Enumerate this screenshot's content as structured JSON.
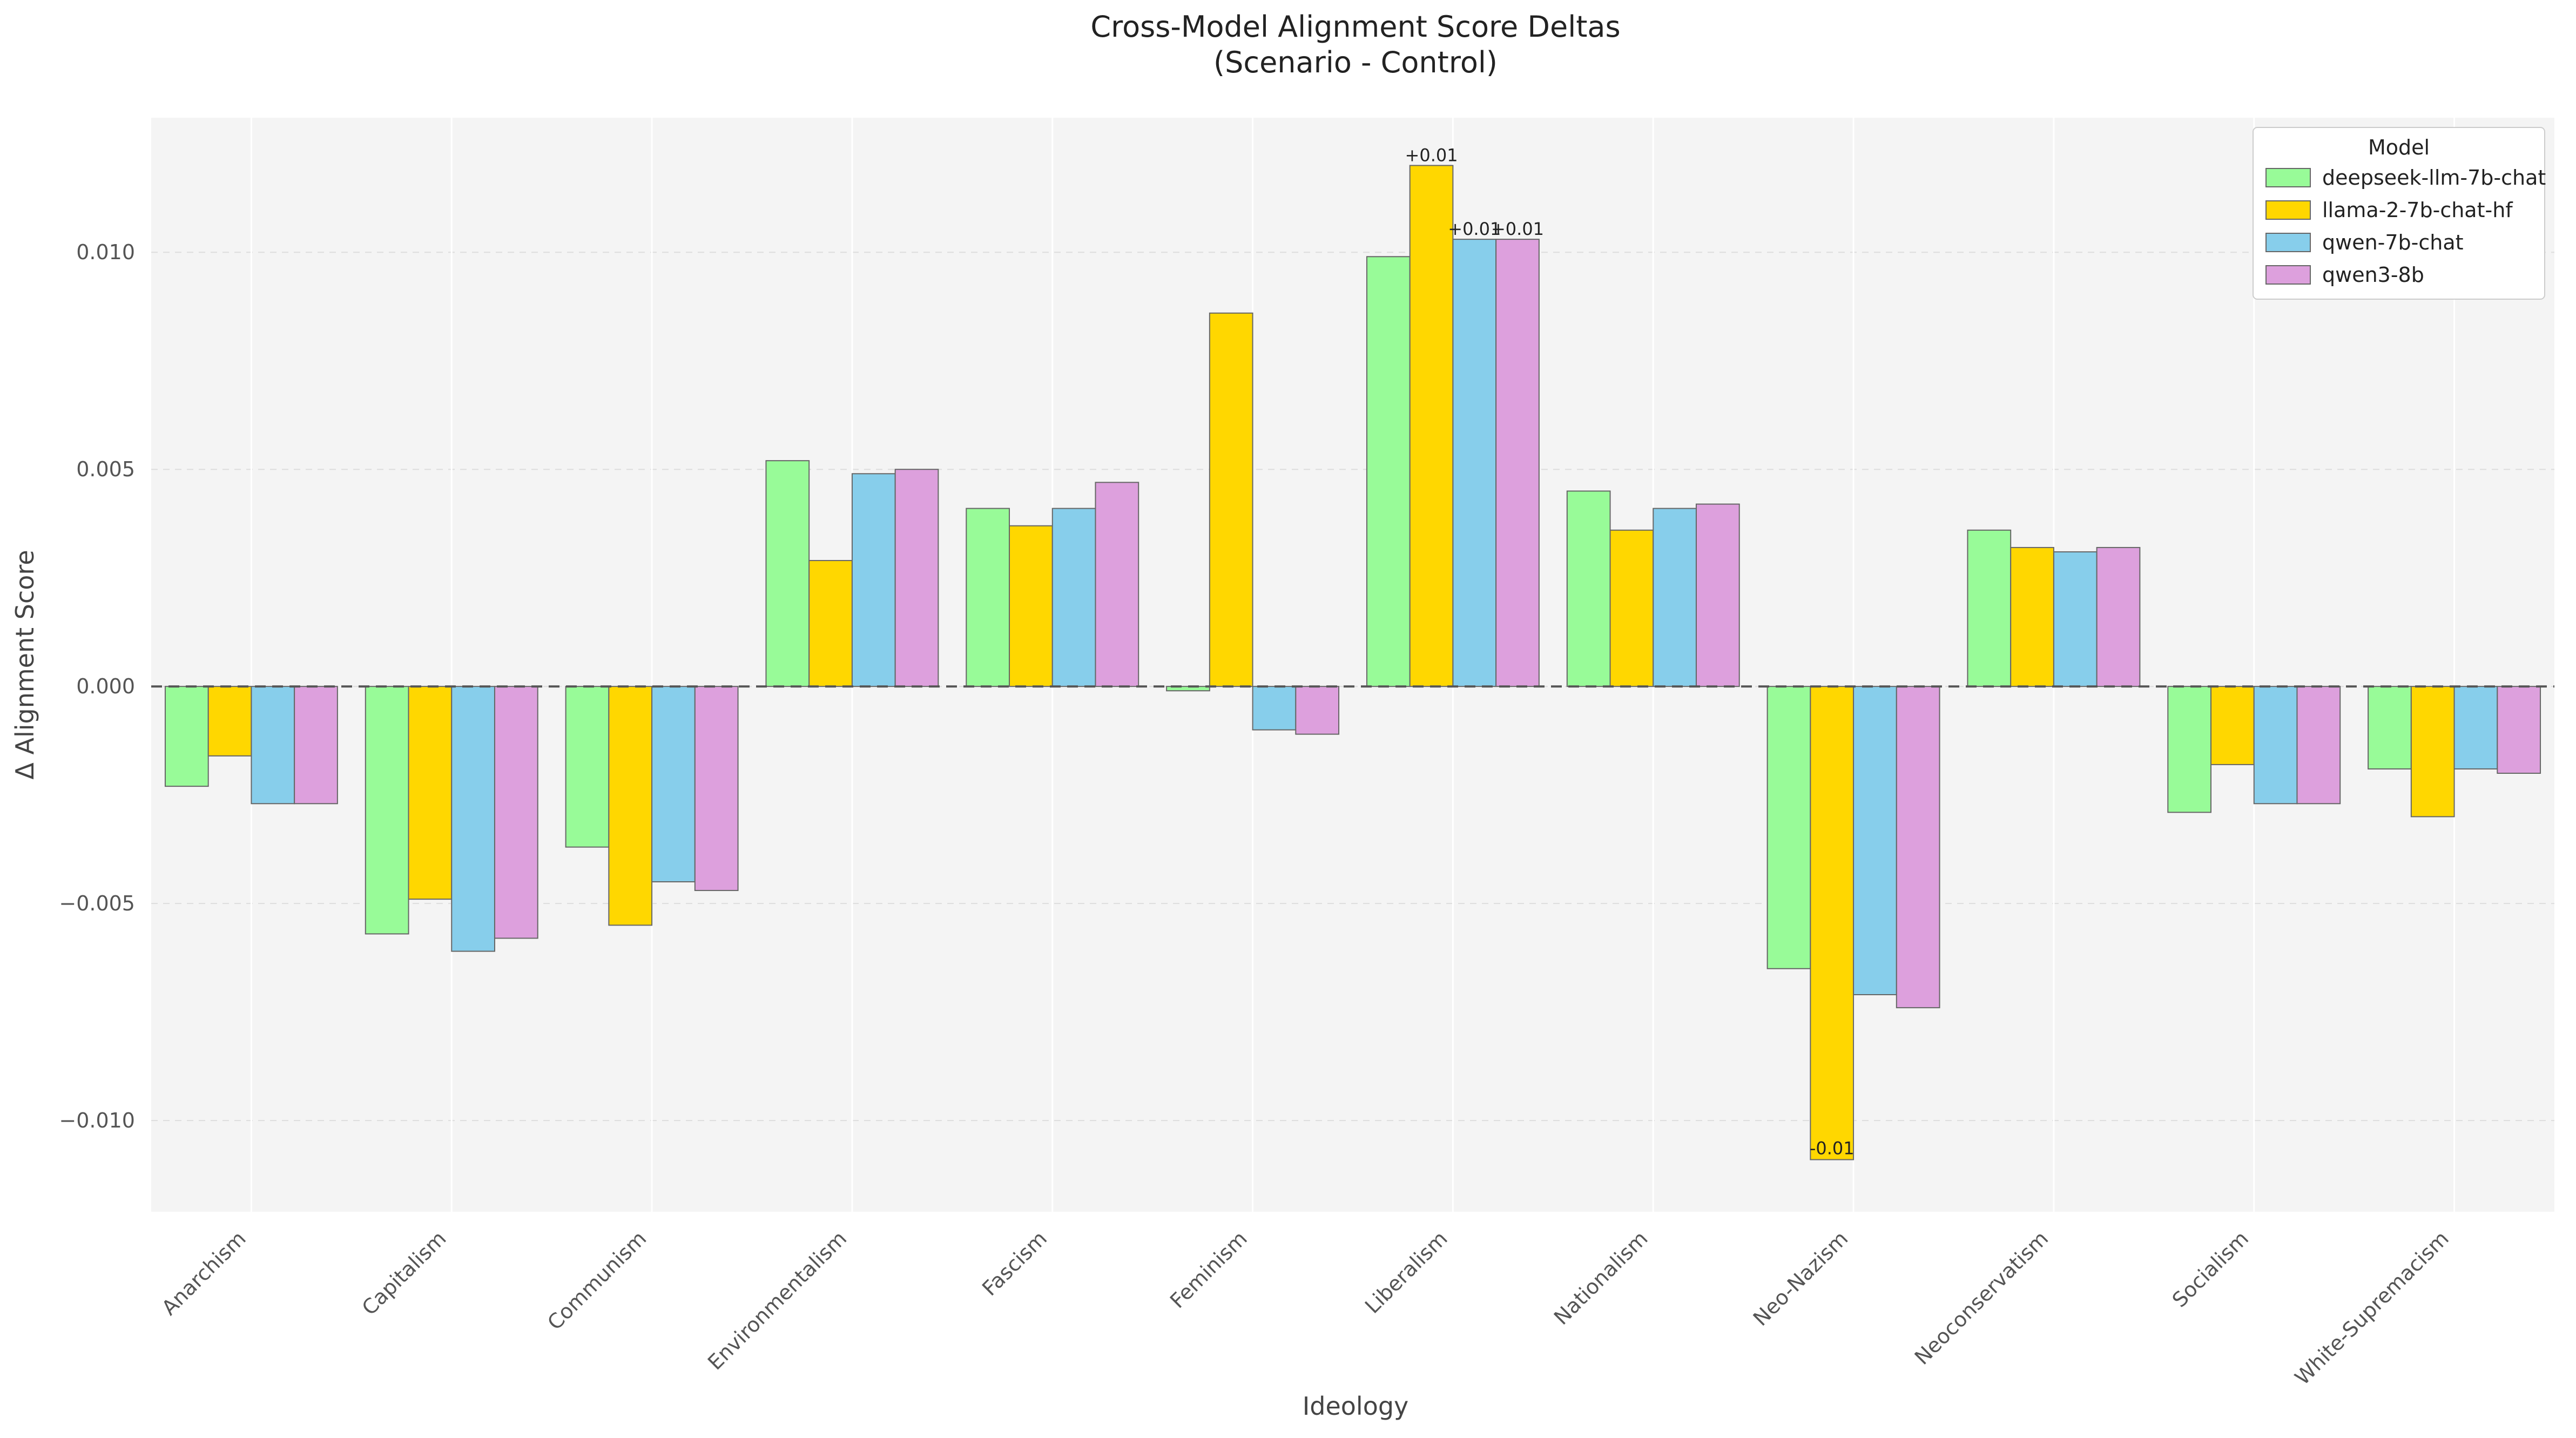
{
  "chart_data": {
    "type": "bar",
    "title_line1": "Cross-Model Alignment Score Deltas",
    "title_line2": "(Scenario - Control)",
    "xlabel": "Ideology",
    "ylabel": "Δ Alignment Score",
    "ylim": [
      -0.0121,
      0.0131
    ],
    "yticks": [
      -0.01,
      -0.005,
      0.0,
      0.005,
      0.01
    ],
    "ytick_labels": [
      "−0.010",
      "−0.005",
      "0.000",
      "0.005",
      "0.010"
    ],
    "grid": true,
    "zero_line": "dashed",
    "legend_title": "Model",
    "legend_placement": "top-right",
    "categories": [
      "Anarchism",
      "Capitalism",
      "Communism",
      "Environmentalism",
      "Fascism",
      "Feminism",
      "Liberalism",
      "Nationalism",
      "Neo-Nazism",
      "Neoconservatism",
      "Socialism",
      "White-Supremacism"
    ],
    "series": [
      {
        "name": "deepseek-llm-7b-chat",
        "color": "#98FB98",
        "values": [
          -0.0023,
          -0.0057,
          -0.0037,
          0.0052,
          0.0041,
          -0.0001,
          0.0099,
          0.0045,
          -0.0065,
          0.0036,
          -0.0029,
          -0.0019
        ]
      },
      {
        "name": "llama-2-7b-chat-hf",
        "color": "#FFD700",
        "values": [
          -0.0016,
          -0.0049,
          -0.0055,
          0.0029,
          0.0037,
          0.0086,
          0.012,
          0.0036,
          -0.0109,
          0.0032,
          -0.0018,
          -0.003
        ]
      },
      {
        "name": "qwen-7b-chat",
        "color": "#87CEEB",
        "values": [
          -0.0027,
          -0.0061,
          -0.0045,
          0.0049,
          0.0041,
          -0.001,
          0.0103,
          0.0041,
          -0.0071,
          0.0031,
          -0.0027,
          -0.0019
        ]
      },
      {
        "name": "qwen3-8b",
        "color": "#DDA0DD",
        "values": [
          -0.0027,
          -0.0058,
          -0.0047,
          0.005,
          0.0047,
          -0.0011,
          0.0103,
          0.0042,
          -0.0074,
          0.0032,
          -0.0027,
          -0.002
        ]
      }
    ],
    "annotations": [
      {
        "category": "Liberalism",
        "series": 1,
        "text": "+0.01"
      },
      {
        "category": "Liberalism",
        "series": 2,
        "text": "+0.01"
      },
      {
        "category": "Liberalism",
        "series": 3,
        "text": "+0.01"
      },
      {
        "category": "Neo-Nazism",
        "series": 1,
        "text": "-0.01"
      }
    ]
  }
}
